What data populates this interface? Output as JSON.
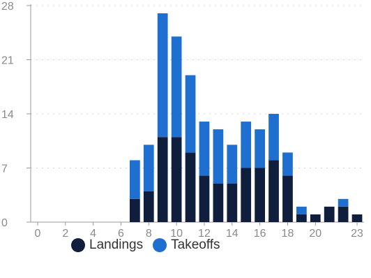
{
  "chart_data": {
    "type": "bar",
    "stacked": true,
    "x": [
      0,
      1,
      2,
      3,
      4,
      5,
      6,
      7,
      8,
      9,
      10,
      11,
      12,
      13,
      14,
      15,
      16,
      17,
      18,
      19,
      20,
      21,
      22,
      23
    ],
    "x_tick_labels": [
      "0",
      "2",
      "4",
      "6",
      "8",
      "10",
      "12",
      "14",
      "16",
      "18",
      "20",
      "23"
    ],
    "x_tick_values": [
      0,
      2,
      4,
      6,
      8,
      10,
      12,
      14,
      16,
      18,
      20,
      23
    ],
    "y_ticks": [
      0,
      7,
      14,
      21,
      28
    ],
    "ylim": [
      0,
      28
    ],
    "series": [
      {
        "name": "Landings",
        "color": "#0f1e3d",
        "values": [
          0,
          0,
          0,
          0,
          0,
          0,
          0,
          3,
          4,
          11,
          11,
          9,
          6,
          5,
          5,
          7,
          7,
          8,
          6,
          1,
          1,
          2,
          2,
          1
        ]
      },
      {
        "name": "Takeoffs",
        "color": "#1f6fd1",
        "values": [
          0,
          0,
          0,
          0,
          0,
          0,
          0,
          5,
          6,
          16,
          13,
          10,
          7,
          7,
          5,
          6,
          5,
          6,
          3,
          1,
          0,
          0,
          1,
          0
        ]
      }
    ],
    "legend_position": "bottom"
  }
}
